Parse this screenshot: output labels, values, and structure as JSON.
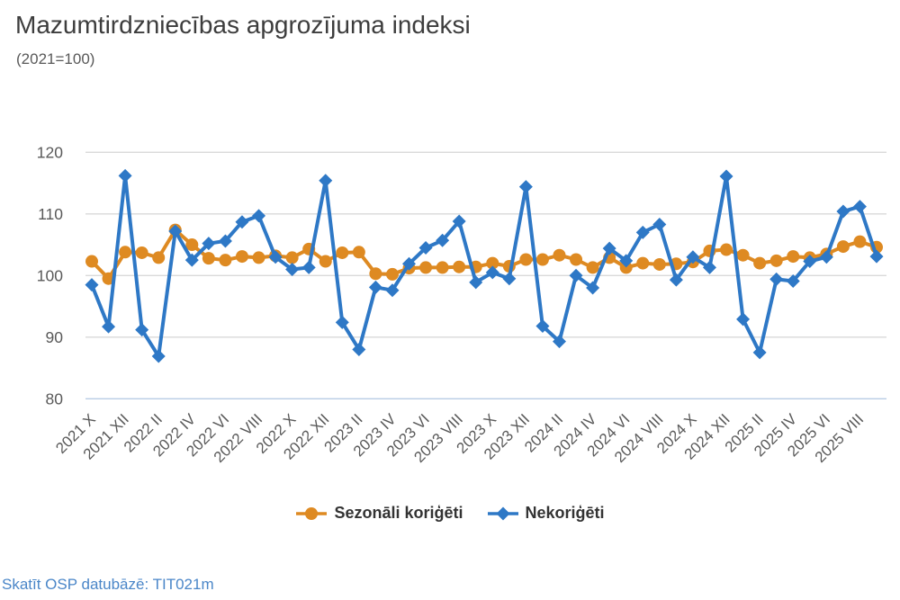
{
  "header": {
    "title": "Mazumtirdzniecības apgrozījuma indeksi",
    "subtitle": "(2021=100)"
  },
  "footer": {
    "link_text": "Skatīt OSP datubāzē: TIT021m",
    "link_color": "#4a86c8"
  },
  "colors": {
    "grid": "#d9d9d9",
    "baseline": "#b8cce4",
    "axis_text": "#595959",
    "title_text": "#3d3d3d",
    "legend_text": "#333333"
  },
  "chart_data": {
    "type": "line",
    "title": "Mazumtirdzniecības apgrozījuma indeksi",
    "subtitle": "(2021=100)",
    "xlabel": "",
    "ylabel": "",
    "ylim": [
      80,
      120
    ],
    "yticks": [
      80,
      90,
      100,
      110,
      120
    ],
    "grid": true,
    "legend_position": "bottom",
    "tick_every": 2,
    "categories": [
      "2021 X",
      "2021 XI",
      "2021 XII",
      "2022 I",
      "2022 II",
      "2022 III",
      "2022 IV",
      "2022 V",
      "2022 VI",
      "2022 VII",
      "2022 VIII",
      "2022 IX",
      "2022 X",
      "2022 XI",
      "2022 XII",
      "2023 I",
      "2023 II",
      "2023 III",
      "2023 IV",
      "2023 V",
      "2023 VI",
      "2023 VII",
      "2023 VIII",
      "2023 IX",
      "2023 X",
      "2023 XI",
      "2023 XII",
      "2024 I",
      "2024 II",
      "2024 III",
      "2024 IV",
      "2024 V",
      "2024 VI",
      "2024 VII",
      "2024 VIII",
      "2024 IX",
      "2024 X",
      "2024 XI",
      "2024 XII",
      "2025 I",
      "2025 II",
      "2025 III",
      "2025 IV",
      "2025 V",
      "2025 VI",
      "2025 VII",
      "2025 VIII",
      "2025 IX"
    ],
    "series": [
      {
        "name": "Sezonāli koriģēti",
        "marker": "circle",
        "color": "#de8a22",
        "values": [
          102.3,
          99.5,
          103.8,
          103.7,
          102.9,
          107.4,
          105.0,
          102.8,
          102.5,
          103.1,
          102.9,
          103.2,
          102.9,
          104.3,
          102.3,
          103.7,
          103.8,
          100.3,
          100.2,
          101.2,
          101.3,
          101.3,
          101.4,
          101.4,
          102.0,
          101.5,
          102.6,
          102.6,
          103.3,
          102.6,
          101.3,
          102.9,
          101.3,
          102.0,
          101.8,
          101.9,
          102.2,
          104.0,
          104.2,
          103.3,
          102.0,
          102.4,
          103.1,
          102.9,
          103.5,
          104.7,
          105.5,
          104.6
        ]
      },
      {
        "name": "Nekoriģēti",
        "marker": "diamond",
        "color": "#2e78c6",
        "values": [
          98.5,
          91.7,
          116.2,
          91.2,
          86.9,
          107.2,
          102.5,
          105.2,
          105.6,
          108.7,
          109.7,
          103.0,
          101.0,
          101.3,
          115.4,
          92.4,
          88.0,
          98.1,
          97.6,
          101.9,
          104.5,
          105.7,
          108.8,
          98.9,
          100.5,
          99.5,
          114.4,
          91.8,
          89.3,
          100.0,
          98.0,
          104.4,
          102.4,
          107.0,
          108.3,
          99.3,
          103.0,
          101.3,
          116.1,
          92.9,
          87.5,
          99.4,
          99.1,
          102.3,
          103.0,
          110.4,
          111.2,
          103.1
        ]
      }
    ]
  }
}
